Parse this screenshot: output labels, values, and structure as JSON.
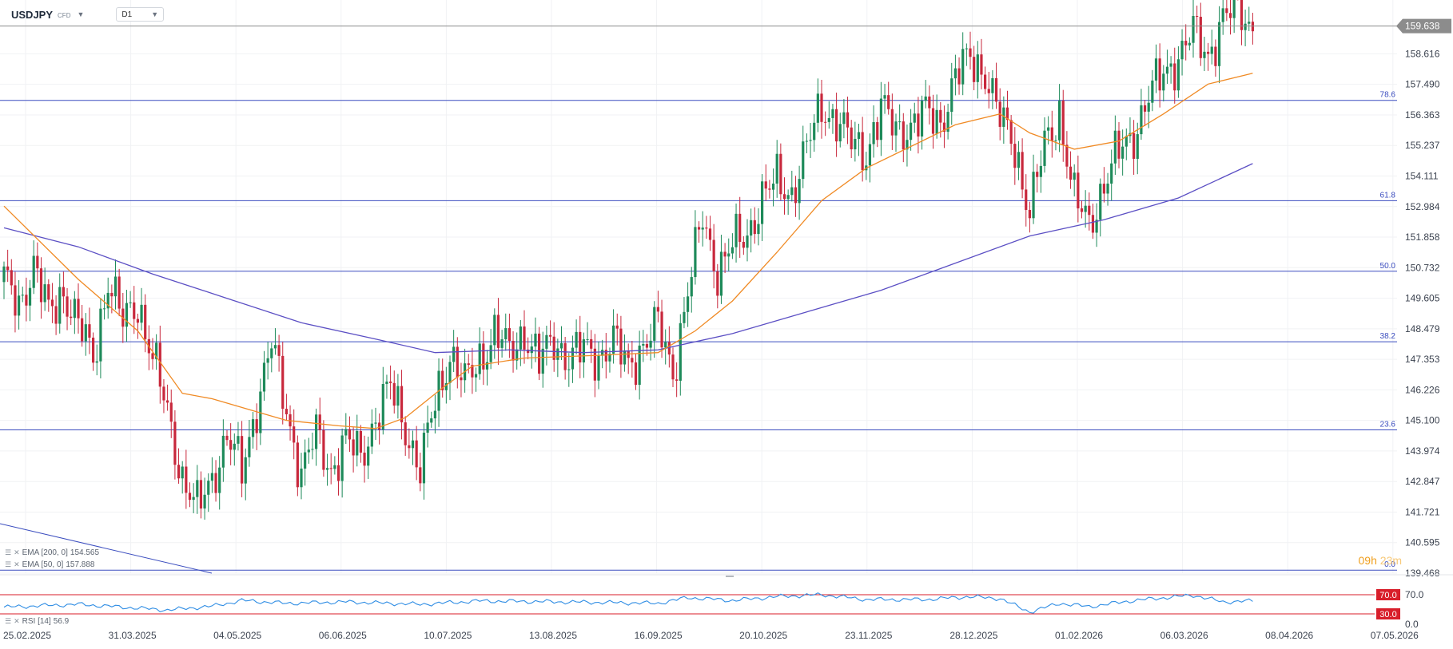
{
  "header": {
    "symbol": "USDJPY",
    "instrument_type": "CFD",
    "timeframe": "D1"
  },
  "colors": {
    "bull": "#1e8a5a",
    "bear": "#c8283c",
    "ema200": "#5b4fc4",
    "ema50": "#f08a24",
    "fib": "#3b4dbf",
    "rsi": "#2f8de4",
    "rsi_levels": "#d81e2a",
    "price_line": "#8c8c8c",
    "countdown": "#f0a020"
  },
  "indicators": {
    "ema200": {
      "label": "EMA [200, 0]",
      "value": "154.565"
    },
    "ema50": {
      "label": "EMA [50, 0]",
      "value": "157.888"
    },
    "rsi": {
      "label": "RSI [14]",
      "value": "56.9"
    }
  },
  "countdown": {
    "hours": "09",
    "h": "h",
    "minutes": "23",
    "m": "m"
  },
  "chart_data": {
    "type": "candlestick",
    "symbol": "USDJPY",
    "timeframe": "D1",
    "last_price": 159.638,
    "y_axis_ticks": [
      159.638,
      158.616,
      157.49,
      156.363,
      155.237,
      154.111,
      152.984,
      151.858,
      150.732,
      149.605,
      148.479,
      147.353,
      146.226,
      145.1,
      143.974,
      142.847,
      141.721,
      140.595,
      139.468
    ],
    "ylim": [
      139.468,
      160.6
    ],
    "x_axis_labels": [
      "25.02.2025",
      "31.03.2025",
      "04.05.2025",
      "06.06.2025",
      "10.07.2025",
      "13.08.2025",
      "16.09.2025",
      "20.10.2025",
      "23.11.2025",
      "28.12.2025",
      "01.02.2026",
      "06.03.2026",
      "08.04.2026",
      "07.05.2026"
    ],
    "fibonacci": [
      {
        "label": "78.6",
        "price": 156.9
      },
      {
        "label": "61.8",
        "price": 153.2
      },
      {
        "label": "50.0",
        "price": 150.6
      },
      {
        "label": "38.2",
        "price": 148.0
      },
      {
        "label": "23.6",
        "price": 144.75
      },
      {
        "label": "0.0",
        "price": 139.58
      }
    ],
    "close_path": [
      [
        0,
        150.2
      ],
      [
        4,
        149.4
      ],
      [
        8,
        150.8
      ],
      [
        12,
        149.0
      ],
      [
        16,
        149.9
      ],
      [
        20,
        148.6
      ],
      [
        24,
        147.4
      ],
      [
        28,
        150.3
      ],
      [
        32,
        148.7
      ],
      [
        36,
        149.5
      ],
      [
        40,
        147.4
      ],
      [
        44,
        145.4
      ],
      [
        48,
        143.0
      ],
      [
        52,
        141.8
      ],
      [
        56,
        143.0
      ],
      [
        60,
        144.5
      ],
      [
        64,
        143.2
      ],
      [
        68,
        145.7
      ],
      [
        72,
        147.9
      ],
      [
        76,
        145.5
      ],
      [
        80,
        143.1
      ],
      [
        84,
        144.6
      ],
      [
        88,
        143.3
      ],
      [
        92,
        144.3
      ],
      [
        96,
        143.8
      ],
      [
        100,
        145.2
      ],
      [
        104,
        146.3
      ],
      [
        108,
        144.9
      ],
      [
        112,
        143.2
      ],
      [
        116,
        145.8
      ],
      [
        120,
        147.6
      ],
      [
        124,
        146.4
      ],
      [
        128,
        147.4
      ],
      [
        132,
        148.3
      ],
      [
        136,
        147.6
      ],
      [
        140,
        148.4
      ],
      [
        144,
        147.2
      ],
      [
        148,
        148.1
      ],
      [
        152,
        147.4
      ],
      [
        156,
        147.7
      ],
      [
        160,
        147.5
      ],
      [
        164,
        148.0
      ],
      [
        168,
        147.1
      ],
      [
        172,
        147.9
      ],
      [
        176,
        148.6
      ],
      [
        180,
        146.9
      ],
      [
        184,
        149.8
      ],
      [
        188,
        152.6
      ],
      [
        192,
        150.6
      ],
      [
        196,
        151.5
      ],
      [
        200,
        152.0
      ],
      [
        204,
        153.3
      ],
      [
        208,
        153.9
      ],
      [
        212,
        153.5
      ],
      [
        216,
        155.1
      ],
      [
        220,
        156.7
      ],
      [
        224,
        156.2
      ],
      [
        228,
        155.3
      ],
      [
        232,
        155.0
      ],
      [
        236,
        156.6
      ],
      [
        240,
        155.8
      ],
      [
        244,
        156.0
      ],
      [
        248,
        156.4
      ],
      [
        252,
        156.1
      ],
      [
        256,
        157.8
      ],
      [
        260,
        158.4
      ],
      [
        264,
        158.0
      ],
      [
        268,
        156.2
      ],
      [
        272,
        155.2
      ],
      [
        276,
        152.8
      ],
      [
        280,
        155.2
      ],
      [
        284,
        156.5
      ],
      [
        288,
        153.2
      ],
      [
        292,
        152.4
      ],
      [
        296,
        153.8
      ],
      [
        300,
        155.0
      ],
      [
        304,
        155.7
      ],
      [
        308,
        157.0
      ],
      [
        312,
        157.9
      ],
      [
        316,
        158.5
      ],
      [
        320,
        159.4
      ],
      [
        324,
        158.6
      ],
      [
        328,
        159.9
      ],
      [
        332,
        160.3
      ],
      [
        336,
        159.6
      ]
    ],
    "ema50_path": [
      [
        0,
        153.0
      ],
      [
        20,
        150.3
      ],
      [
        36,
        148.4
      ],
      [
        48,
        146.1
      ],
      [
        56,
        145.9
      ],
      [
        66,
        145.5
      ],
      [
        76,
        145.1
      ],
      [
        90,
        144.9
      ],
      [
        100,
        144.8
      ],
      [
        108,
        145.2
      ],
      [
        118,
        146.3
      ],
      [
        126,
        147.1
      ],
      [
        140,
        147.4
      ],
      [
        160,
        147.5
      ],
      [
        176,
        147.6
      ],
      [
        186,
        148.4
      ],
      [
        196,
        149.5
      ],
      [
        208,
        151.3
      ],
      [
        220,
        153.2
      ],
      [
        232,
        154.4
      ],
      [
        244,
        155.2
      ],
      [
        256,
        156.0
      ],
      [
        268,
        156.4
      ],
      [
        276,
        155.7
      ],
      [
        288,
        155.1
      ],
      [
        300,
        155.4
      ],
      [
        312,
        156.4
      ],
      [
        324,
        157.5
      ],
      [
        336,
        157.9
      ]
    ],
    "ema200_path": [
      [
        0,
        152.2
      ],
      [
        20,
        151.5
      ],
      [
        40,
        150.5
      ],
      [
        60,
        149.6
      ],
      [
        80,
        148.7
      ],
      [
        100,
        148.1
      ],
      [
        116,
        147.6
      ],
      [
        136,
        147.7
      ],
      [
        156,
        147.6
      ],
      [
        176,
        147.7
      ],
      [
        196,
        148.3
      ],
      [
        216,
        149.1
      ],
      [
        236,
        149.9
      ],
      [
        256,
        150.9
      ],
      [
        276,
        151.9
      ],
      [
        296,
        152.5
      ],
      [
        316,
        153.3
      ],
      [
        336,
        154.57
      ]
    ],
    "rsi": {
      "value": 56.9,
      "upper": 70.0,
      "lower": 30.0,
      "axis_labels": [
        "70.0",
        "30.0",
        "0.0"
      ],
      "path": [
        [
          0,
          44
        ],
        [
          20,
          50
        ],
        [
          44,
          38
        ],
        [
          56,
          46
        ],
        [
          64,
          58
        ],
        [
          76,
          52
        ],
        [
          92,
          55
        ],
        [
          112,
          50
        ],
        [
          128,
          57
        ],
        [
          140,
          56
        ],
        [
          160,
          54
        ],
        [
          176,
          52
        ],
        [
          184,
          64
        ],
        [
          196,
          58
        ],
        [
          208,
          66
        ],
        [
          220,
          70
        ],
        [
          232,
          60
        ],
        [
          248,
          60
        ],
        [
          260,
          66
        ],
        [
          268,
          62
        ],
        [
          276,
          34
        ],
        [
          284,
          52
        ],
        [
          292,
          45
        ],
        [
          304,
          58
        ],
        [
          320,
          69
        ],
        [
          328,
          55
        ],
        [
          336,
          57
        ]
      ]
    }
  }
}
